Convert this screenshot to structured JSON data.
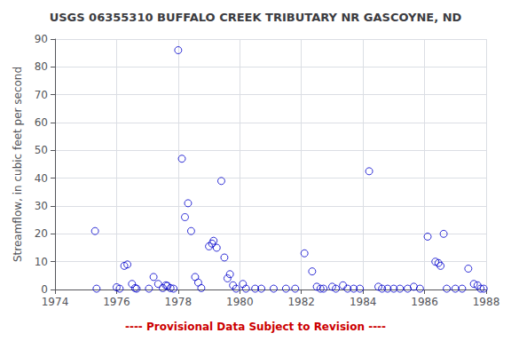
{
  "chart_data": {
    "type": "scatter",
    "title": "USGS 06355310 BUFFALO CREEK TRIBUTARY NR GASCOYNE, ND",
    "ylabel": "Streamflow, in cubic feet per second",
    "annotations": [
      {
        "text": "---- Provisional Data Subject to Revision ----",
        "color": "#CC0000"
      }
    ],
    "color": "#0000CC",
    "marker": "circle",
    "grid": true,
    "xlim": [
      1974,
      1988
    ],
    "ylim": [
      0,
      90
    ],
    "xticks": [
      1974,
      1976,
      1978,
      1980,
      1982,
      1984,
      1986,
      1988
    ],
    "yticks": [
      0,
      10,
      20,
      30,
      40,
      50,
      60,
      70,
      80,
      90
    ],
    "x": [
      1975.3,
      1975.35,
      1976.0,
      1976.1,
      1976.25,
      1976.35,
      1976.5,
      1976.6,
      1976.65,
      1977.05,
      1977.2,
      1977.35,
      1977.5,
      1977.6,
      1977.65,
      1977.75,
      1977.85,
      1978.0,
      1978.12,
      1978.22,
      1978.32,
      1978.42,
      1978.55,
      1978.65,
      1978.75,
      1979.0,
      1979.1,
      1979.15,
      1979.25,
      1979.4,
      1979.5,
      1979.6,
      1979.68,
      1979.78,
      1979.88,
      1980.1,
      1980.2,
      1980.5,
      1980.7,
      1981.1,
      1981.5,
      1981.8,
      1982.1,
      1982.35,
      1982.5,
      1982.62,
      1982.72,
      1983.0,
      1983.12,
      1983.35,
      1983.5,
      1983.7,
      1983.9,
      1984.2,
      1984.5,
      1984.62,
      1984.8,
      1985.0,
      1985.2,
      1985.45,
      1985.65,
      1985.85,
      1986.1,
      1986.35,
      1986.45,
      1986.52,
      1986.62,
      1986.72,
      1987.0,
      1987.22,
      1987.42,
      1987.6,
      1987.72,
      1987.82,
      1987.92
    ],
    "values": [
      21.0,
      0.3,
      0.8,
      0.3,
      8.5,
      9.0,
      2.0,
      0.5,
      0.3,
      0.3,
      4.5,
      2.0,
      0.5,
      1.5,
      1.3,
      0.5,
      0.3,
      86.0,
      47.0,
      26.0,
      31.0,
      21.0,
      4.5,
      2.5,
      0.5,
      15.5,
      16.5,
      17.5,
      15.0,
      39.0,
      11.5,
      4.0,
      5.5,
      1.5,
      0.3,
      2.0,
      0.3,
      0.3,
      0.3,
      0.3,
      0.3,
      0.3,
      13.0,
      6.5,
      1.0,
      0.3,
      0.3,
      1.0,
      0.3,
      1.5,
      0.3,
      0.3,
      0.3,
      42.5,
      1.0,
      0.3,
      0.3,
      0.3,
      0.3,
      0.3,
      1.0,
      0.3,
      19.0,
      10.0,
      9.5,
      8.5,
      20.0,
      0.3,
      0.3,
      0.3,
      7.5,
      2.0,
      1.5,
      0.3,
      0.3
    ]
  }
}
